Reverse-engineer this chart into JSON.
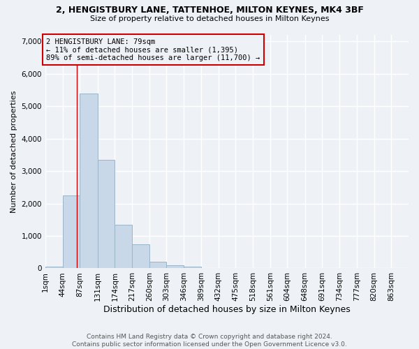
{
  "title": "2, HENGISTBURY LANE, TATTENHOE, MILTON KEYNES, MK4 3BF",
  "subtitle": "Size of property relative to detached houses in Milton Keynes",
  "xlabel": "Distribution of detached houses by size in Milton Keynes",
  "ylabel": "Number of detached properties",
  "footer_line1": "Contains HM Land Registry data © Crown copyright and database right 2024.",
  "footer_line2": "Contains public sector information licensed under the Open Government Licence v3.0.",
  "bar_color": "#c8d8e8",
  "bar_edge_color": "#9ab4c8",
  "annotation_line_color": "#cc0000",
  "annotation_box_color": "#cc0000",
  "annotation_text": "2 HENGISTBURY LANE: 79sqm\n← 11% of detached houses are smaller (1,395)\n89% of semi-detached houses are larger (11,700) →",
  "property_size": 79,
  "categories": [
    "1sqm",
    "44sqm",
    "87sqm",
    "131sqm",
    "174sqm",
    "217sqm",
    "260sqm",
    "303sqm",
    "346sqm",
    "389sqm",
    "432sqm",
    "475sqm",
    "518sqm",
    "561sqm",
    "604sqm",
    "648sqm",
    "691sqm",
    "734sqm",
    "777sqm",
    "820sqm",
    "863sqm"
  ],
  "bin_edges": [
    1,
    44,
    87,
    131,
    174,
    217,
    260,
    303,
    346,
    389,
    432,
    475,
    518,
    561,
    604,
    648,
    691,
    734,
    777,
    820,
    863,
    906
  ],
  "values": [
    50,
    2250,
    5400,
    3350,
    1350,
    750,
    200,
    100,
    50,
    0,
    0,
    0,
    0,
    0,
    0,
    0,
    0,
    0,
    0,
    0,
    0
  ],
  "ylim": [
    0,
    7200
  ],
  "yticks": [
    0,
    1000,
    2000,
    3000,
    4000,
    5000,
    6000,
    7000
  ],
  "background_color": "#eef2f7",
  "grid_color": "#ffffff",
  "title_fontsize": 9,
  "subtitle_fontsize": 8,
  "ylabel_fontsize": 8,
  "xlabel_fontsize": 9,
  "tick_fontsize": 7.5,
  "footer_fontsize": 6.5
}
